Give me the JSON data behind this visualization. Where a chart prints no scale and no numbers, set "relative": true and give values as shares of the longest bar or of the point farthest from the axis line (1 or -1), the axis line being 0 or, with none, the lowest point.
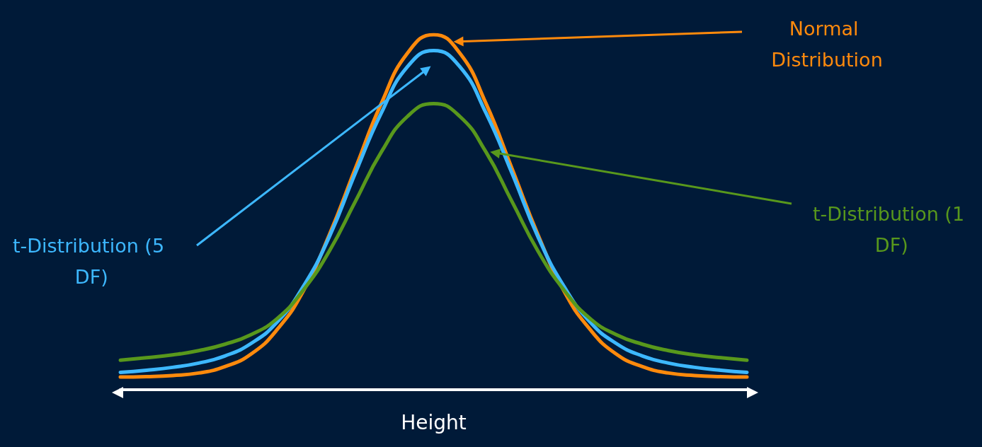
{
  "chart_data": {
    "type": "line",
    "relative": true,
    "xlabel": "Height",
    "marker": "none",
    "categories": [
      null,
      null,
      null,
      null,
      null,
      null,
      null,
      null,
      null,
      null,
      null,
      null,
      null,
      null,
      null,
      null,
      null,
      null,
      null,
      null,
      null,
      null,
      null,
      null,
      null
    ],
    "series": [
      {
        "name": "Normal Distribution",
        "color": "#ff8a0c",
        "values": [
          0.036,
          0.037,
          0.04,
          0.047,
          0.065,
          0.1,
          0.169,
          0.277,
          0.436,
          0.623,
          0.807,
          0.948,
          1,
          0.948,
          0.807,
          0.623,
          0.436,
          0.277,
          0.169,
          0.1,
          0.065,
          0.047,
          0.04,
          0.037,
          0.036
        ]
      },
      {
        "name": "t-Distribution (5 DF)",
        "color": "#3db8ff",
        "values": [
          0.049,
          0.055,
          0.063,
          0.075,
          0.095,
          0.13,
          0.19,
          0.29,
          0.43,
          0.61,
          0.78,
          0.91,
          0.955,
          0.91,
          0.78,
          0.61,
          0.43,
          0.29,
          0.19,
          0.13,
          0.095,
          0.075,
          0.063,
          0.055,
          0.049
        ]
      },
      {
        "name": "t-Distribution (1 DF)",
        "color": "#58981c",
        "values": [
          0.083,
          0.09,
          0.098,
          0.11,
          0.128,
          0.155,
          0.2,
          0.28,
          0.39,
          0.53,
          0.67,
          0.77,
          0.806,
          0.77,
          0.67,
          0.53,
          0.39,
          0.28,
          0.2,
          0.155,
          0.128,
          0.11,
          0.098,
          0.09,
          0.083
        ]
      }
    ]
  }
}
